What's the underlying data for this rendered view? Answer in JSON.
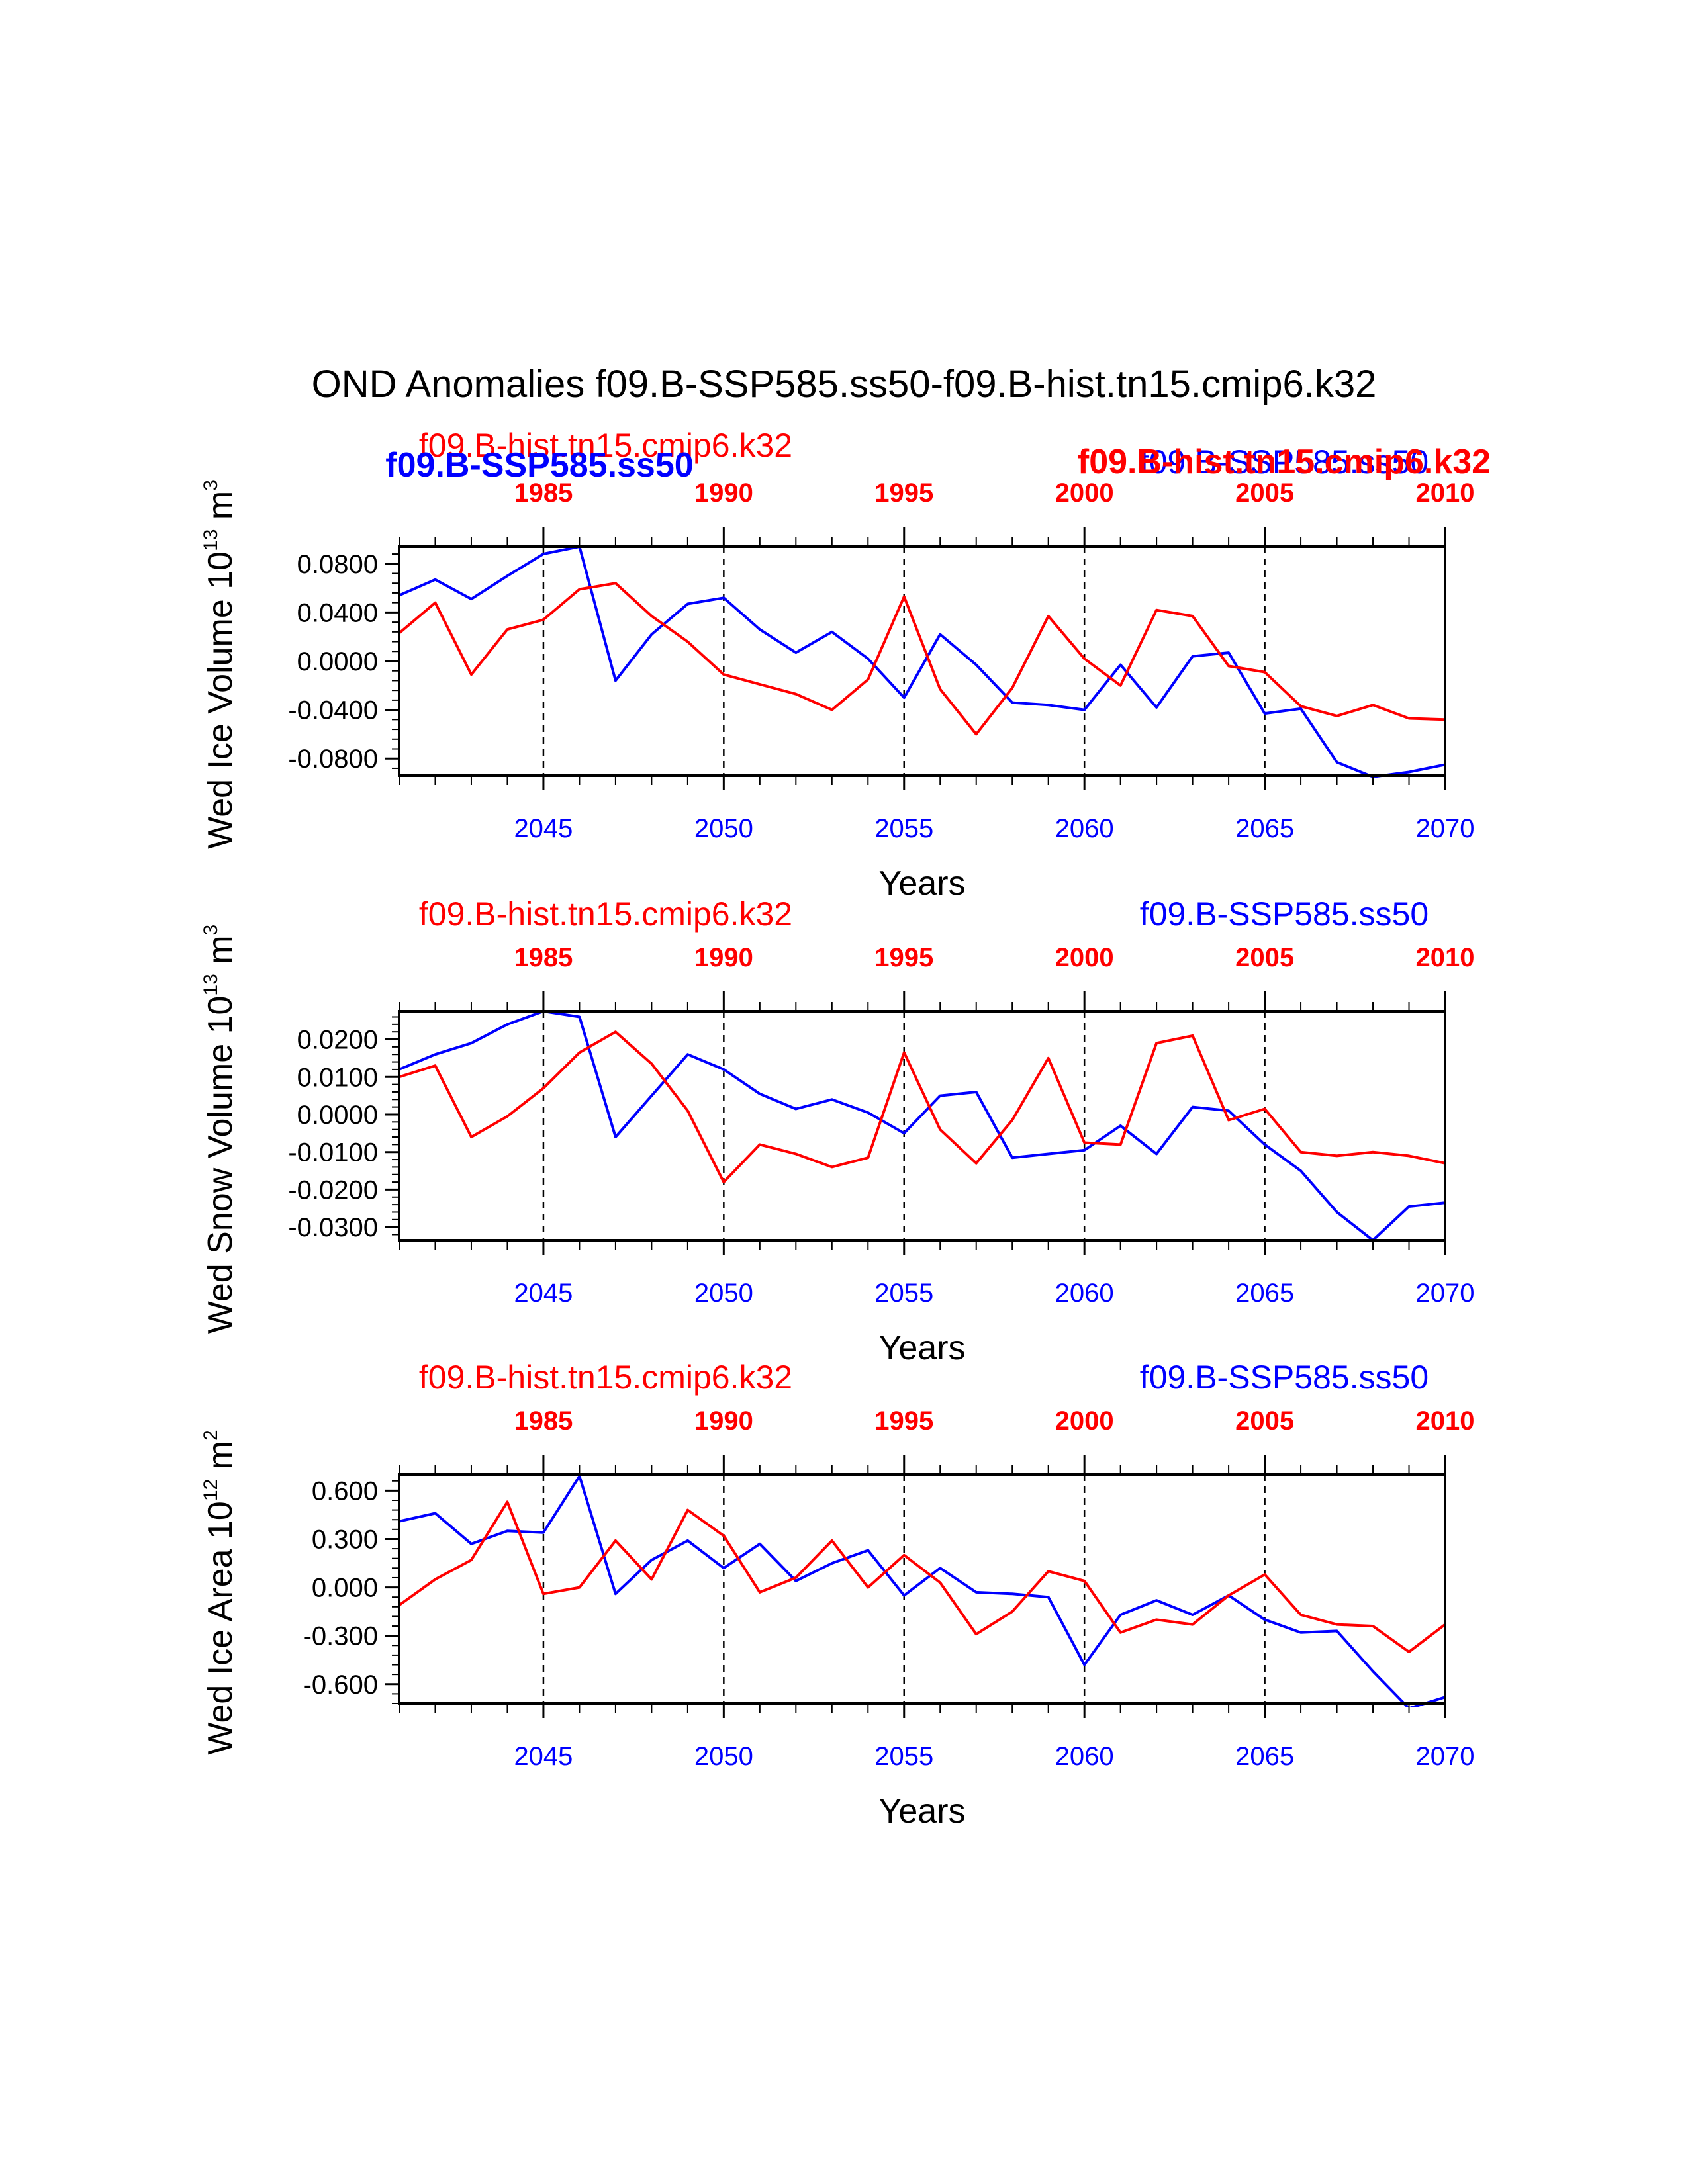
{
  "page_title": "OND Anomalies f09.B-SSP585.ss50-f09.B-hist.tn15.cmip6.k32",
  "colors": {
    "hist": "#ff0000",
    "ssp": "#0000ff",
    "axis": "#000000"
  },
  "x_axis_label": "Years",
  "bottom_ticks": [
    "2045",
    "2050",
    "2055",
    "2060",
    "2065",
    "2070"
  ],
  "top_ticks": [
    "1985",
    "1990",
    "1995",
    "2000",
    "2005",
    "2010"
  ],
  "legend": {
    "hist_label": "f09.B-hist.tn15.cmip6.k32",
    "ssp_label": "f09.B-SSP585.ss50"
  },
  "chart_data": [
    {
      "type": "line",
      "ylabel_main": "Wed Ice Volume 10",
      "ylabel_exp": "13",
      "ylabel_unit": " m",
      "ylabel_unit_exp": "3",
      "ylim": [
        -0.094,
        0.094
      ],
      "yticks": [
        0.08,
        0.04,
        0.0,
        -0.04,
        -0.08
      ],
      "ytick_labels": [
        "0.0800",
        "0.0400",
        "0.0000",
        "-0.0400",
        "-0.0800"
      ],
      "yminor_step": 0.008,
      "x_bottom": [
        2041,
        2042,
        2043,
        2044,
        2045,
        2046,
        2047,
        2048,
        2049,
        2050,
        2051,
        2052,
        2053,
        2054,
        2055,
        2056,
        2057,
        2058,
        2059,
        2060,
        2061,
        2062,
        2063,
        2064,
        2065,
        2066,
        2067,
        2068,
        2069,
        2070
      ],
      "x_top": [
        1981,
        1982,
        1983,
        1984,
        1985,
        1986,
        1987,
        1988,
        1989,
        1990,
        1991,
        1992,
        1993,
        1994,
        1995,
        1996,
        1997,
        1998,
        1999,
        2000,
        2001,
        2002,
        2003,
        2004,
        2005,
        2006,
        2007,
        2008,
        2009,
        2010
      ],
      "series": [
        {
          "name": "f09.B-SSP585.ss50",
          "axis": "bottom",
          "values": [
            0.054,
            0.067,
            0.051,
            0.07,
            0.088,
            0.094,
            -0.016,
            0.022,
            0.047,
            0.052,
            0.026,
            0.007,
            0.024,
            0.002,
            -0.03,
            0.022,
            -0.003,
            -0.034,
            -0.036,
            -0.04,
            -0.003,
            -0.038,
            0.004,
            0.007,
            -0.043,
            -0.039,
            -0.083,
            -0.095,
            -0.091,
            -0.085
          ]
        },
        {
          "name": "f09.B-hist.tn15.cmip6.k32",
          "axis": "top",
          "values": [
            0.023,
            0.048,
            -0.011,
            0.026,
            0.034,
            0.059,
            0.064,
            0.037,
            0.016,
            -0.011,
            -0.019,
            -0.027,
            -0.04,
            -0.015,
            0.053,
            -0.023,
            -0.06,
            -0.022,
            0.037,
            0.002,
            -0.02,
            0.042,
            0.037,
            -0.004,
            -0.009,
            -0.037,
            -0.045,
            -0.036,
            -0.047,
            -0.048
          ]
        }
      ]
    },
    {
      "type": "line",
      "ylabel_main": "Wed Snow Volume 10",
      "ylabel_exp": "13",
      "ylabel_unit": " m",
      "ylabel_unit_exp": "3",
      "ylim": [
        -0.0335,
        0.0275
      ],
      "yticks": [
        0.02,
        0.01,
        0.0,
        -0.01,
        -0.02,
        -0.03
      ],
      "ytick_labels": [
        "0.0200",
        "0.0100",
        "0.0000",
        "-0.0100",
        "-0.0200",
        "-0.0300"
      ],
      "yminor_step": 0.002,
      "x_bottom": [
        2041,
        2042,
        2043,
        2044,
        2045,
        2046,
        2047,
        2048,
        2049,
        2050,
        2051,
        2052,
        2053,
        2054,
        2055,
        2056,
        2057,
        2058,
        2059,
        2060,
        2061,
        2062,
        2063,
        2064,
        2065,
        2066,
        2067,
        2068,
        2069,
        2070
      ],
      "x_top": [
        1981,
        1982,
        1983,
        1984,
        1985,
        1986,
        1987,
        1988,
        1989,
        1990,
        1991,
        1992,
        1993,
        1994,
        1995,
        1996,
        1997,
        1998,
        1999,
        2000,
        2001,
        2002,
        2003,
        2004,
        2005,
        2006,
        2007,
        2008,
        2009,
        2010
      ],
      "series": [
        {
          "name": "f09.B-SSP585.ss50",
          "axis": "bottom",
          "values": [
            0.012,
            0.016,
            0.019,
            0.024,
            0.0275,
            0.026,
            -0.006,
            0.005,
            0.016,
            0.012,
            0.0055,
            0.0015,
            0.004,
            0.0005,
            -0.005,
            0.005,
            0.006,
            -0.0115,
            -0.0105,
            -0.0095,
            -0.003,
            -0.0105,
            0.002,
            0.001,
            -0.008,
            -0.015,
            -0.026,
            -0.0335,
            -0.0245,
            -0.0235
          ]
        },
        {
          "name": "f09.B-hist.tn15.cmip6.k32",
          "axis": "top",
          "values": [
            0.01,
            0.013,
            -0.006,
            -0.0005,
            0.007,
            0.0165,
            0.022,
            0.0135,
            0.001,
            -0.018,
            -0.008,
            -0.0105,
            -0.014,
            -0.0115,
            0.0165,
            -0.004,
            -0.013,
            -0.0015,
            0.015,
            -0.0075,
            -0.008,
            0.019,
            0.021,
            -0.0015,
            0.0015,
            -0.01,
            -0.011,
            -0.01,
            -0.011,
            -0.013
          ]
        }
      ]
    },
    {
      "type": "line",
      "ylabel_main": "Wed Ice Area 10",
      "ylabel_exp": "12",
      "ylabel_unit": " m",
      "ylabel_unit_exp": "2",
      "ylim": [
        -0.72,
        0.7
      ],
      "yticks": [
        0.6,
        0.3,
        0.0,
        -0.3,
        -0.6
      ],
      "ytick_labels": [
        "0.600",
        "0.300",
        "0.000",
        "-0.300",
        "-0.600"
      ],
      "yminor_step": 0.06,
      "x_bottom": [
        2041,
        2042,
        2043,
        2044,
        2045,
        2046,
        2047,
        2048,
        2049,
        2050,
        2051,
        2052,
        2053,
        2054,
        2055,
        2056,
        2057,
        2058,
        2059,
        2060,
        2061,
        2062,
        2063,
        2064,
        2065,
        2066,
        2067,
        2068,
        2069,
        2070
      ],
      "x_top": [
        1981,
        1982,
        1983,
        1984,
        1985,
        1986,
        1987,
        1988,
        1989,
        1990,
        1991,
        1992,
        1993,
        1994,
        1995,
        1996,
        1997,
        1998,
        1999,
        2000,
        2001,
        2002,
        2003,
        2004,
        2005,
        2006,
        2007,
        2008,
        2009,
        2010
      ],
      "series": [
        {
          "name": "f09.B-SSP585.ss50",
          "axis": "bottom",
          "values": [
            0.41,
            0.46,
            0.27,
            0.35,
            0.34,
            0.69,
            -0.04,
            0.17,
            0.29,
            0.12,
            0.27,
            0.04,
            0.15,
            0.23,
            -0.05,
            0.12,
            -0.03,
            -0.04,
            -0.06,
            -0.48,
            -0.17,
            -0.08,
            -0.17,
            -0.05,
            -0.2,
            -0.28,
            -0.27,
            -0.52,
            -0.75,
            -0.68
          ]
        },
        {
          "name": "f09.B-hist.tn15.cmip6.k32",
          "axis": "top",
          "values": [
            -0.11,
            0.05,
            0.17,
            0.53,
            -0.04,
            0.0,
            0.29,
            0.05,
            0.48,
            0.32,
            -0.03,
            0.06,
            0.29,
            0.0,
            0.2,
            0.03,
            -0.29,
            -0.15,
            0.1,
            0.04,
            -0.28,
            -0.2,
            -0.23,
            -0.05,
            0.08,
            -0.17,
            -0.23,
            -0.24,
            -0.4,
            -0.23
          ]
        }
      ]
    }
  ]
}
